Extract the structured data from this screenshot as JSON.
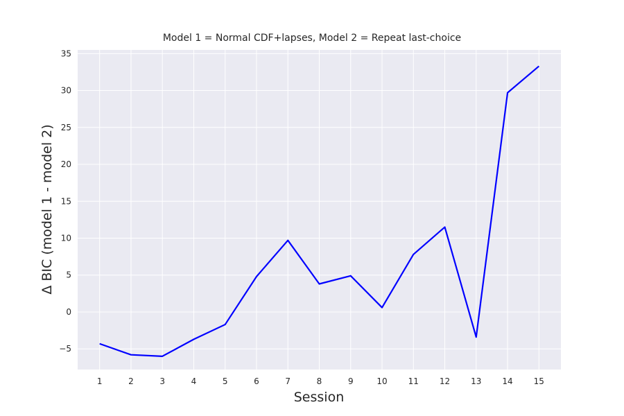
{
  "chart_data": {
    "type": "line",
    "title": "Model 1 = Normal CDF+lapses, Model 2 = Repeat last-choice",
    "xlabel": "Session",
    "ylabel": "Δ BIC (model 1 - model 2)",
    "x": [
      1,
      2,
      3,
      4,
      5,
      6,
      7,
      8,
      9,
      10,
      11,
      12,
      13,
      14,
      15
    ],
    "series": [
      {
        "values": [
          -4.3,
          -5.8,
          -6.0,
          -3.7,
          -1.7,
          4.8,
          9.7,
          3.8,
          4.9,
          0.6,
          7.8,
          11.5,
          -3.4,
          29.7,
          33.3
        ]
      }
    ],
    "xticks": [
      1,
      2,
      3,
      4,
      5,
      6,
      7,
      8,
      9,
      10,
      11,
      12,
      13,
      14,
      15
    ],
    "yticks": [
      -5,
      0,
      5,
      10,
      15,
      20,
      25,
      30,
      35
    ],
    "xlim": [
      0.3,
      15.7
    ],
    "ylim": [
      -7.8,
      35.5
    ],
    "grid": true,
    "colors": {
      "line": "#0000ff",
      "plot_background": "#eaeaf2",
      "grid": "#ffffff",
      "text": "#262626"
    }
  }
}
